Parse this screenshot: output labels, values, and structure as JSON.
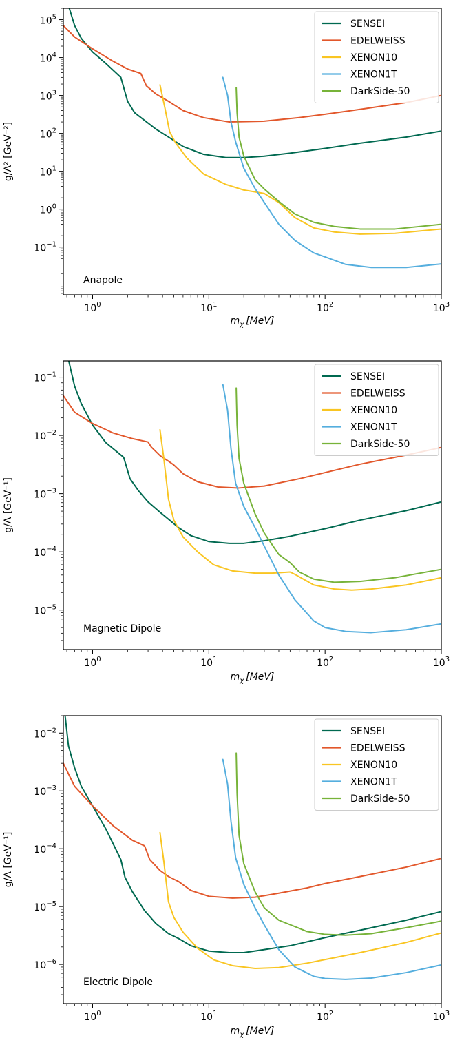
{
  "chart_data": [
    {
      "type": "line",
      "panel_label": "Anapole",
      "xlabel": "m_χ [MeV]",
      "ylabel": "g/Λ² [GeV⁻²]",
      "xscale": "log",
      "yscale": "log",
      "xlim": [
        0.56,
        1000
      ],
      "ylim": [
        0.0055,
        200000
      ],
      "xticks": [
        {
          "v": 1,
          "base": "10",
          "exp": "0"
        },
        {
          "v": 10,
          "base": "10",
          "exp": "1"
        },
        {
          "v": 100,
          "base": "10",
          "exp": "2"
        },
        {
          "v": 1000,
          "base": "10",
          "exp": "3"
        }
      ],
      "yticks": [
        {
          "v": 0.1,
          "base": "10",
          "exp": "−1"
        },
        {
          "v": 1,
          "base": "10",
          "exp": "0"
        },
        {
          "v": 10,
          "base": "10",
          "exp": "1"
        },
        {
          "v": 100,
          "base": "10",
          "exp": "2"
        },
        {
          "v": 1000,
          "base": "10",
          "exp": "3"
        },
        {
          "v": 10000,
          "base": "10",
          "exp": "4"
        },
        {
          "v": 100000,
          "base": "10",
          "exp": "5"
        }
      ],
      "legend_position": "top-right",
      "series": [
        {
          "name": "SENSEI",
          "color": "#006950",
          "x": [
            0.63,
            0.7,
            0.8,
            1.0,
            1.3,
            1.75,
            2.0,
            2.3,
            2.8,
            3.5,
            4.5,
            6,
            9,
            14,
            20,
            30,
            50,
            100,
            200,
            500,
            1000
          ],
          "y": [
            200000,
            70000,
            32000,
            14000,
            7000,
            3000,
            700,
            350,
            220,
            130,
            80,
            45,
            28,
            23,
            23,
            25,
            30,
            40,
            55,
            80,
            115
          ]
        },
        {
          "name": "EDELWEISS",
          "color": "#e2572b",
          "x": [
            0.56,
            0.7,
            1.0,
            1.5,
            2.0,
            2.6,
            2.9,
            3.5,
            4.5,
            6,
            9,
            15,
            30,
            60,
            100,
            200,
            500,
            1000
          ],
          "y": [
            70000,
            35000,
            17000,
            8000,
            5000,
            3800,
            1800,
            1100,
            700,
            400,
            260,
            200,
            210,
            260,
            320,
            430,
            650,
            1000
          ]
        },
        {
          "name": "XENON10",
          "color": "#f9c522",
          "x": [
            3.8,
            4.2,
            4.6,
            5.2,
            6.5,
            9,
            14,
            20,
            30,
            40,
            55,
            80,
            120,
            200,
            400,
            1000
          ],
          "y": [
            1900,
            450,
            110,
            55,
            22,
            8.5,
            4.5,
            3.2,
            2.6,
            1.5,
            0.6,
            0.32,
            0.25,
            0.22,
            0.23,
            0.3
          ]
        },
        {
          "name": "XENON1T",
          "color": "#55aede",
          "x": [
            13.2,
            14.5,
            15.5,
            17,
            20,
            25,
            30,
            40,
            55,
            80,
            100,
            150,
            250,
            500,
            1000
          ],
          "y": [
            3000,
            1000,
            200,
            60,
            12,
            3.5,
            1.5,
            0.4,
            0.15,
            0.07,
            0.055,
            0.035,
            0.029,
            0.029,
            0.036
          ]
        },
        {
          "name": "DarkSide-50",
          "color": "#77b339",
          "x": [
            17.2,
            17.5,
            18.2,
            20,
            25,
            30,
            40,
            55,
            80,
            120,
            200,
            400,
            1000
          ],
          "y": [
            1600,
            350,
            80,
            25,
            6,
            3.4,
            1.6,
            0.75,
            0.45,
            0.35,
            0.3,
            0.3,
            0.4
          ]
        }
      ]
    },
    {
      "type": "line",
      "panel_label": "Magnetic Dipole",
      "xlabel": "m_χ [MeV]",
      "ylabel": "g/Λ [GeV⁻¹]",
      "xscale": "log",
      "yscale": "log",
      "xlim": [
        0.56,
        1000
      ],
      "ylim": [
        2.1e-06,
        0.19
      ],
      "xticks": [
        {
          "v": 1,
          "base": "10",
          "exp": "0"
        },
        {
          "v": 10,
          "base": "10",
          "exp": "1"
        },
        {
          "v": 100,
          "base": "10",
          "exp": "2"
        },
        {
          "v": 1000,
          "base": "10",
          "exp": "3"
        }
      ],
      "yticks": [
        {
          "v": 1e-05,
          "base": "10",
          "exp": "−5"
        },
        {
          "v": 0.0001,
          "base": "10",
          "exp": "−4"
        },
        {
          "v": 0.001,
          "base": "10",
          "exp": "−3"
        },
        {
          "v": 0.01,
          "base": "10",
          "exp": "−2"
        },
        {
          "v": 0.1,
          "base": "10",
          "exp": "−1"
        }
      ],
      "legend_position": "top-right",
      "series": [
        {
          "name": "SENSEI",
          "color": "#006950",
          "x": [
            0.62,
            0.7,
            0.8,
            1.0,
            1.3,
            1.85,
            2.1,
            2.5,
            3.0,
            3.8,
            4.6,
            5.5,
            7,
            10,
            15,
            20,
            30,
            50,
            100,
            200,
            500,
            1000
          ],
          "y": [
            0.2,
            0.07,
            0.035,
            0.015,
            0.0075,
            0.0042,
            0.0018,
            0.0011,
            0.00072,
            0.00048,
            0.00035,
            0.00026,
            0.00019,
            0.00015,
            0.00014,
            0.00014,
            0.000155,
            0.000185,
            0.00025,
            0.00035,
            0.00051,
            0.00072
          ]
        },
        {
          "name": "EDELWEISS",
          "color": "#e2572b",
          "x": [
            0.56,
            0.7,
            1.0,
            1.5,
            2.2,
            3.0,
            3.2,
            3.8,
            4.5,
            5.0,
            6,
            8,
            12,
            18,
            30,
            60,
            100,
            200,
            500,
            1000
          ],
          "y": [
            0.048,
            0.025,
            0.016,
            0.011,
            0.0088,
            0.0077,
            0.0063,
            0.0045,
            0.0036,
            0.0031,
            0.0022,
            0.0016,
            0.0013,
            0.00125,
            0.00135,
            0.0018,
            0.0023,
            0.0032,
            0.0046,
            0.0062
          ]
        },
        {
          "name": "XENON10",
          "color": "#f9c522",
          "x": [
            3.8,
            4.1,
            4.5,
            5.0,
            6,
            8,
            11,
            16,
            25,
            35,
            50,
            55,
            80,
            120,
            170,
            250,
            500,
            1000
          ],
          "y": [
            0.0125,
            0.004,
            0.0008,
            0.00035,
            0.00018,
            0.0001,
            6e-05,
            4.7e-05,
            4.3e-05,
            4.3e-05,
            4.5e-05,
            4.1e-05,
            2.7e-05,
            2.3e-05,
            2.2e-05,
            2.3e-05,
            2.7e-05,
            3.6e-05
          ]
        },
        {
          "name": "XENON1T",
          "color": "#55aede",
          "x": [
            13.2,
            14.5,
            15.5,
            17,
            20,
            25,
            30,
            40,
            55,
            80,
            100,
            150,
            250,
            500,
            1000
          ],
          "y": [
            0.075,
            0.027,
            0.006,
            0.0015,
            0.0006,
            0.00026,
            0.000125,
            4e-05,
            1.5e-05,
            6.5e-06,
            5e-06,
            4.3e-06,
            4.1e-06,
            4.6e-06,
            5.8e-06
          ]
        },
        {
          "name": "DarkSide-50",
          "color": "#77b339",
          "x": [
            17.2,
            17.5,
            18.2,
            20,
            25,
            30,
            40,
            50,
            60,
            80,
            120,
            200,
            400,
            1000
          ],
          "y": [
            0.065,
            0.015,
            0.004,
            0.0015,
            0.00045,
            0.00021,
            9e-05,
            6.5e-05,
            4.5e-05,
            3.4e-05,
            3e-05,
            3.1e-05,
            3.6e-05,
            5e-05
          ]
        }
      ]
    },
    {
      "type": "line",
      "panel_label": "Electric Dipole",
      "xlabel": "m_χ [MeV]",
      "ylabel": "g/Λ [GeV⁻¹]",
      "xscale": "log",
      "yscale": "log",
      "xlim": [
        0.56,
        1000
      ],
      "ylim": [
        2.1e-07,
        0.02
      ],
      "xticks": [
        {
          "v": 1,
          "base": "10",
          "exp": "0"
        },
        {
          "v": 10,
          "base": "10",
          "exp": "1"
        },
        {
          "v": 100,
          "base": "10",
          "exp": "2"
        },
        {
          "v": 1000,
          "base": "10",
          "exp": "3"
        }
      ],
      "yticks": [
        {
          "v": 1e-06,
          "base": "10",
          "exp": "−6"
        },
        {
          "v": 1e-05,
          "base": "10",
          "exp": "−5"
        },
        {
          "v": 0.0001,
          "base": "10",
          "exp": "−4"
        },
        {
          "v": 0.001,
          "base": "10",
          "exp": "−3"
        },
        {
          "v": 0.01,
          "base": "10",
          "exp": "−2"
        }
      ],
      "legend_position": "top-right",
      "series": [
        {
          "name": "SENSEI",
          "color": "#006950",
          "x": [
            0.58,
            0.62,
            0.7,
            0.8,
            1.0,
            1.3,
            1.75,
            1.9,
            2.2,
            2.8,
            3.5,
            4.5,
            5.5,
            7,
            10,
            15,
            20,
            30,
            50,
            100,
            200,
            500,
            1000
          ],
          "y": [
            0.02,
            0.006,
            0.0025,
            0.0012,
            0.00055,
            0.00022,
            6.5e-05,
            3.2e-05,
            1.8e-05,
            8.5e-06,
            5.1e-06,
            3.4e-06,
            2.8e-06,
            2.1e-06,
            1.7e-06,
            1.6e-06,
            1.6e-06,
            1.8e-06,
            2.1e-06,
            2.9e-06,
            3.9e-06,
            5.8e-06,
            8.2e-06
          ]
        },
        {
          "name": "EDELWEISS",
          "color": "#e2572b",
          "x": [
            0.56,
            0.7,
            1.0,
            1.5,
            2.2,
            2.8,
            3.1,
            3.8,
            4.5,
            5.5,
            7,
            10,
            16,
            25,
            40,
            70,
            100,
            200,
            500,
            1000
          ],
          "y": [
            0.003,
            0.0012,
            0.00055,
            0.00025,
            0.00014,
            0.000112,
            6.5e-05,
            4.2e-05,
            3.3e-05,
            2.7e-05,
            1.9e-05,
            1.5e-05,
            1.4e-05,
            1.45e-05,
            1.7e-05,
            2.1e-05,
            2.5e-05,
            3.3e-05,
            4.8e-05,
            6.8e-05
          ]
        },
        {
          "name": "XENON10",
          "color": "#f9c522",
          "x": [
            3.8,
            4.1,
            4.5,
            5.0,
            6,
            8,
            11,
            16,
            25,
            40,
            70,
            120,
            200,
            500,
            1000
          ],
          "y": [
            0.00019,
            6e-05,
            1.2e-05,
            6.5e-06,
            3.6e-06,
            1.9e-06,
            1.2e-06,
            9.5e-07,
            8.5e-07,
            8.8e-07,
            1.05e-06,
            1.3e-06,
            1.6e-06,
            2.4e-06,
            3.5e-06
          ]
        },
        {
          "name": "XENON1T",
          "color": "#55aede",
          "x": [
            13.2,
            14.5,
            15.5,
            17,
            20,
            25,
            30,
            40,
            55,
            80,
            100,
            150,
            250,
            500,
            1000
          ],
          "y": [
            0.0035,
            0.0013,
            0.0003,
            7e-05,
            2.4e-05,
            9.5e-06,
            4.8e-06,
            1.8e-06,
            9e-07,
            6.2e-07,
            5.7e-07,
            5.5e-07,
            5.8e-07,
            7.2e-07,
            9.8e-07
          ]
        },
        {
          "name": "DarkSide-50",
          "color": "#77b339",
          "x": [
            17.2,
            17.5,
            18.2,
            20,
            25,
            30,
            40,
            60,
            70,
            100,
            150,
            250,
            500,
            1000
          ],
          "y": [
            0.0045,
            0.0009,
            0.00017,
            5.5e-05,
            1.8e-05,
            9.5e-06,
            5.8e-06,
            4.2e-06,
            3.7e-06,
            3.3e-06,
            3.2e-06,
            3.4e-06,
            4.3e-06,
            5.6e-06
          ]
        }
      ]
    }
  ]
}
